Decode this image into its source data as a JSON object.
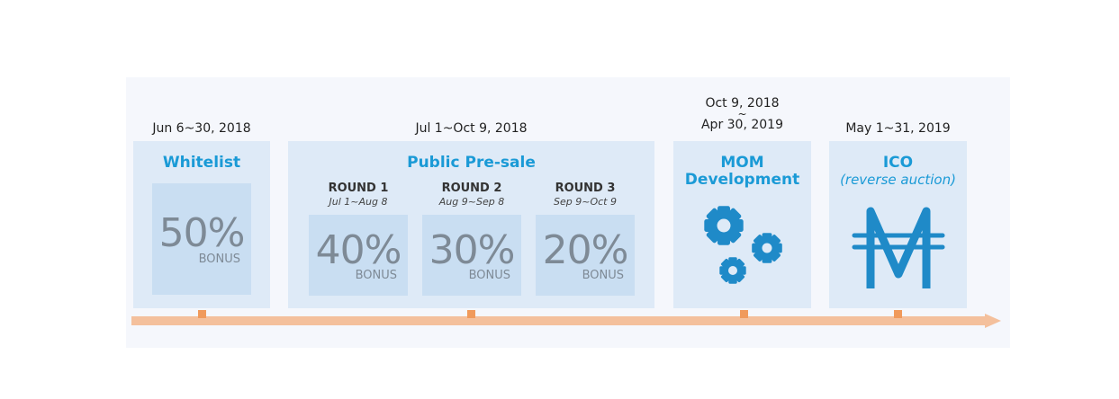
{
  "stages": {
    "whitelist": {
      "date": "Jun 6~30, 2018",
      "title": "Whitelist",
      "pct": "50%",
      "bonus": "BONUS"
    },
    "presale": {
      "date": "Jul 1~Oct 9, 2018",
      "title": "Public Pre-sale",
      "rounds": [
        {
          "name": "ROUND 1",
          "dates": "Jul 1~Aug 8",
          "pct": "40%",
          "bonus": "BONUS"
        },
        {
          "name": "ROUND 2",
          "dates": "Aug 9~Sep 8",
          "pct": "30%",
          "bonus": "BONUS"
        },
        {
          "name": "ROUND 3",
          "dates": "Sep 9~Oct 9",
          "pct": "20%",
          "bonus": "BONUS"
        }
      ]
    },
    "mom": {
      "date_line1": "Oct 9, 2018",
      "date_sep": "~",
      "date_line2": "Apr 30, 2019",
      "title_line1": "MOM",
      "title_line2": "Development",
      "icon": "gears-icon"
    },
    "ico": {
      "date": "May 1~31, 2019",
      "title": "ICO",
      "subtitle": "(reverse auction)",
      "icon": "mom-coin-icon"
    }
  },
  "colors": {
    "accent": "#1a9ad6",
    "timeline": "#f4c09c",
    "tick": "#f09a5c",
    "box": "#deeaf7",
    "card": "#c9def2"
  }
}
